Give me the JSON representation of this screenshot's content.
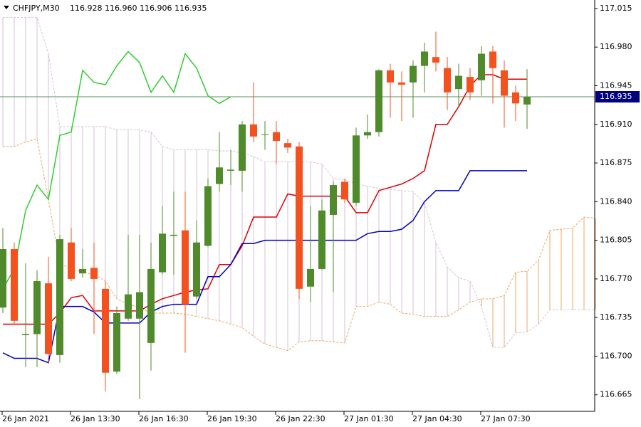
{
  "chart_data": {
    "type": "candlestick",
    "title": "CHFJPY,M30",
    "header_ohlc": [
      116.928,
      {
        "value": 116.96,
        "label": "116.960"
      },
      116.906,
      116.935
    ],
    "categories": [
      "26 Jan 2021",
      null,
      null,
      null,
      null,
      null,
      "26 Jan 13:30",
      null,
      null,
      null,
      null,
      null,
      "26 Jan 16:30",
      null,
      null,
      null,
      null,
      null,
      "26 Jan 19:30",
      null,
      null,
      null,
      null,
      null,
      "26 Jan 22:30",
      null,
      null,
      null,
      null,
      null,
      "27 Jan 01:30",
      null,
      null,
      null,
      null,
      null,
      "27 Jan 04:30",
      null,
      null,
      null,
      null,
      null,
      "27 Jan 07:30",
      null,
      null,
      null,
      null,
      null,
      null,
      null,
      null,
      null,
      null
    ],
    "open": [
      116.744,
      116.797,
      116.719,
      116.72,
      116.766,
      116.701,
      116.803,
      116.775,
      116.78,
      116.761,
      116.686,
      116.734,
      116.734,
      116.712,
      116.776,
      116.809,
      116.814,
      116.754,
      116.8,
      116.856,
      116.868,
      116.868,
      116.91,
      116.901,
      116.903,
      116.893,
      116.89,
      116.763,
      116.779,
      116.828,
      116.858,
      116.839,
      116.9,
      116.903,
      116.959,
      116.948,
      116.948,
      116.963,
      116.971,
      116.961,
      116.942,
      116.953,
      116.95,
      116.976,
      116.959,
      116.939,
      116.928,
      null,
      null,
      null,
      null,
      null,
      null
    ],
    "high": [
      116.816,
      116.803,
      116.784,
      116.778,
      116.79,
      116.81,
      116.816,
      116.797,
      116.803,
      116.768,
      116.745,
      116.81,
      116.81,
      116.803,
      116.836,
      116.849,
      116.849,
      116.823,
      116.861,
      116.903,
      116.887,
      116.913,
      116.948,
      116.913,
      116.913,
      116.897,
      116.894,
      116.836,
      116.842,
      116.858,
      116.861,
      116.907,
      116.919,
      116.96,
      116.965,
      116.958,
      116.968,
      116.984,
      116.994,
      116.971,
      116.965,
      116.961,
      116.981,
      116.981,
      116.968,
      116.945,
      116.96,
      null,
      null,
      null,
      null,
      null,
      null
    ],
    "low": [
      116.739,
      116.729,
      116.69,
      116.69,
      116.694,
      116.694,
      116.768,
      116.771,
      116.72,
      116.668,
      116.684,
      116.732,
      116.661,
      116.687,
      116.774,
      116.774,
      116.703,
      116.752,
      116.799,
      116.849,
      116.855,
      116.849,
      116.894,
      116.887,
      116.874,
      116.884,
      116.752,
      116.749,
      116.778,
      116.758,
      116.839,
      116.836,
      116.897,
      116.899,
      116.916,
      116.913,
      116.916,
      116.939,
      116.958,
      116.923,
      116.926,
      116.932,
      116.936,
      116.929,
      116.907,
      116.913,
      116.906,
      null,
      null,
      null,
      null,
      null,
      null
    ],
    "close": [
      116.797,
      116.732,
      116.72,
      116.768,
      116.702,
      116.806,
      116.77,
      116.779,
      116.77,
      116.685,
      116.739,
      116.756,
      116.758,
      116.779,
      116.811,
      116.81,
      116.747,
      116.803,
      116.854,
      116.871,
      116.869,
      116.91,
      116.899,
      116.901,
      116.895,
      116.889,
      116.761,
      116.779,
      116.832,
      116.855,
      116.842,
      116.9,
      116.903,
      116.959,
      116.948,
      116.946,
      116.963,
      116.976,
      116.966,
      116.939,
      116.954,
      116.939,
      116.974,
      116.961,
      116.936,
      116.929,
      116.935,
      null,
      null,
      null,
      null,
      null,
      null
    ],
    "up_color": "#4f8a2b",
    "down_color": "#f4511e",
    "lines": [
      {
        "color": "#e00000",
        "values": [
          116.729,
          116.729,
          116.729,
          116.729,
          116.729,
          116.739,
          116.753,
          116.755,
          116.741,
          116.741,
          116.741,
          116.741,
          116.741,
          116.747,
          116.752,
          116.755,
          116.758,
          116.76,
          116.761,
          116.783,
          116.783,
          116.8,
          116.826,
          116.826,
          116.826,
          116.847,
          116.845,
          116.845,
          116.845,
          116.845,
          116.845,
          116.83,
          116.83,
          116.85,
          116.853,
          116.856,
          116.861,
          116.868,
          116.91,
          116.91,
          116.926,
          116.945,
          116.955,
          116.955,
          116.951,
          116.951,
          116.951,
          null,
          null,
          null,
          null,
          null,
          null
        ]
      },
      {
        "color": "#0000c0",
        "values": [
          116.703,
          116.698,
          116.698,
          116.698,
          116.694,
          116.745,
          116.745,
          116.745,
          116.74,
          116.73,
          116.73,
          116.73,
          116.73,
          116.74,
          116.745,
          116.747,
          116.747,
          116.747,
          116.772,
          116.772,
          116.783,
          116.802,
          116.802,
          116.805,
          116.805,
          116.805,
          116.805,
          116.805,
          116.805,
          116.805,
          116.805,
          116.805,
          116.811,
          116.813,
          116.813,
          116.815,
          116.823,
          116.84,
          116.85,
          116.85,
          116.85,
          116.868,
          116.868,
          116.868,
          116.868,
          116.868,
          116.868,
          null,
          null,
          null,
          null,
          null,
          null
        ]
      },
      {
        "color": "#32cd32",
        "values": [
          116.761,
          116.779,
          116.832,
          116.855,
          116.842,
          116.9,
          116.903,
          116.959,
          116.948,
          116.946,
          116.963,
          116.976,
          116.966,
          116.939,
          116.954,
          116.939,
          116.974,
          116.961,
          116.936,
          116.929,
          116.935,
          null,
          null,
          null,
          null,
          null,
          null,
          null,
          null,
          null,
          null,
          null,
          null,
          null,
          null,
          null,
          null,
          null,
          null,
          null,
          null,
          null,
          null,
          null,
          null,
          null,
          null,
          null,
          null,
          null,
          null,
          null,
          null
        ]
      }
    ],
    "cloud": {
      "a_color": "#f4a460",
      "b_color": "#d8bfd8",
      "a": [
        116.89,
        116.89,
        116.894,
        116.897,
        116.842,
        116.784,
        116.779,
        116.776,
        116.774,
        116.768,
        116.752,
        116.747,
        116.744,
        116.739,
        116.739,
        116.739,
        116.738,
        116.736,
        116.734,
        116.732,
        116.729,
        116.726,
        116.718,
        116.711,
        116.708,
        116.705,
        116.713,
        116.714,
        116.714,
        116.713,
        116.712,
        116.745,
        116.745,
        116.749,
        116.747,
        116.739,
        116.738,
        116.736,
        116.736,
        116.736,
        116.742,
        116.749,
        116.752,
        116.752,
        116.755,
        116.776,
        116.777,
        116.787,
        116.814,
        116.815,
        116.816,
        116.826,
        116.825
      ],
      "b": [
        117.007,
        117.007,
        117.007,
        117.007,
        116.974,
        116.908,
        116.908,
        116.908,
        116.908,
        116.908,
        116.905,
        116.905,
        116.905,
        116.903,
        116.89,
        116.887,
        116.887,
        116.887,
        116.887,
        116.886,
        116.886,
        116.884,
        116.881,
        116.876,
        116.876,
        116.876,
        116.876,
        116.876,
        116.874,
        116.861,
        116.86,
        116.856,
        116.854,
        116.852,
        116.851,
        116.85,
        116.849,
        116.839,
        116.803,
        116.781,
        116.771,
        116.768,
        116.745,
        116.708,
        116.708,
        116.721,
        116.722,
        116.729,
        116.742,
        116.742,
        116.742,
        116.742,
        116.742
      ]
    },
    "last_price": 116.935,
    "last_price_color": "#5f8f5f",
    "last_price_box": "#000080",
    "ylim": [
      116.65,
      117.0227
    ],
    "yticks": [
      117.015,
      {
        "value": 116.98,
        "label": "116.980"
      },
      116.945,
      {
        "value": 116.91,
        "label": "116.910"
      },
      116.875,
      {
        "value": 116.84,
        "label": "116.840"
      },
      116.805,
      {
        "value": 116.77,
        "label": "116.770"
      },
      116.735,
      {
        "value": 116.7,
        "label": "116.700"
      },
      116.665
    ]
  }
}
